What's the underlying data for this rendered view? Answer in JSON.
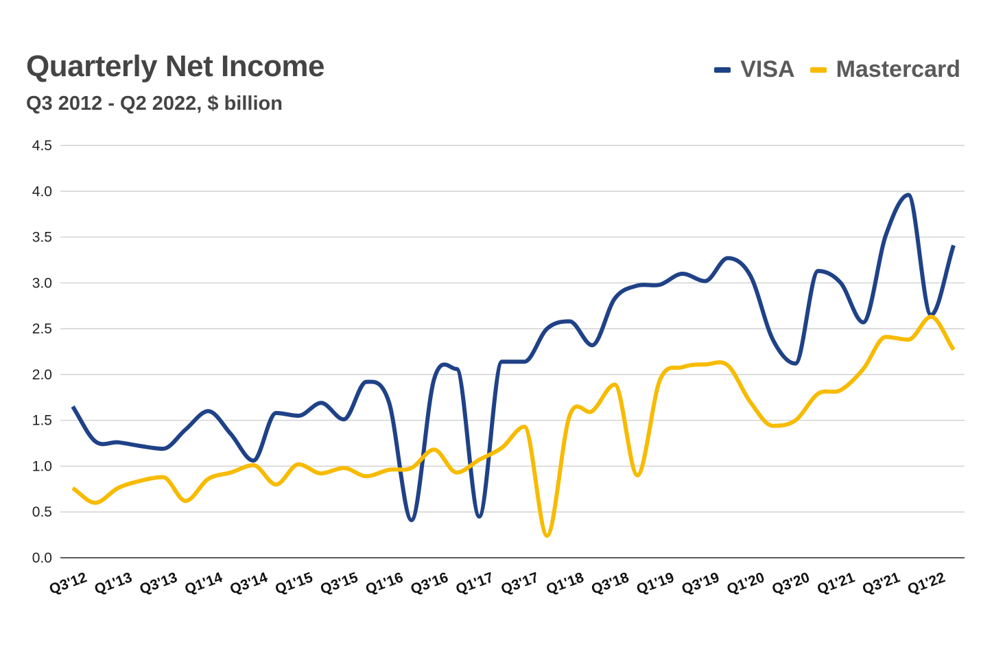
{
  "chart_data": {
    "type": "line",
    "title": "Quarterly Net Income",
    "subtitle": "Q3 2012 - Q2 2022, $ billion",
    "xlabel": "",
    "ylabel": "",
    "ylim": [
      0,
      4.5
    ],
    "yticks": [
      "0.0",
      "0.5",
      "1.0",
      "1.5",
      "2.0",
      "2.5",
      "3.0",
      "3.5",
      "4.0",
      "4.5"
    ],
    "ytick_values": [
      0,
      0.5,
      1,
      1.5,
      2,
      2.5,
      3,
      3.5,
      4,
      4.5
    ],
    "categories": [
      "Q3'12",
      "Q4'12",
      "Q1'13",
      "Q2'13",
      "Q3'13",
      "Q4'13",
      "Q1'14",
      "Q2'14",
      "Q3'14",
      "Q4'14",
      "Q1'15",
      "Q2'15",
      "Q3'15",
      "Q4'15",
      "Q1'16",
      "Q2'16",
      "Q3'16",
      "Q4'16",
      "Q1'17",
      "Q2'17",
      "Q3'17",
      "Q4'17",
      "Q1'18",
      "Q2'18",
      "Q3'18",
      "Q4'18",
      "Q1'19",
      "Q2'19",
      "Q3'19",
      "Q4'19",
      "Q1'20",
      "Q2'20",
      "Q3'20",
      "Q4'20",
      "Q1'21",
      "Q2'21",
      "Q3'21",
      "Q4'21",
      "Q1'22",
      "Q2'22"
    ],
    "x_tick_labels": [
      "Q3'12",
      "Q1'13",
      "Q3'13",
      "Q1'14",
      "Q3'14",
      "Q1'15",
      "Q3'15",
      "Q1'16",
      "Q3'16",
      "Q1'17",
      "Q3'17",
      "Q1'18",
      "Q3'18",
      "Q1'19",
      "Q3'19",
      "Q1'20",
      "Q3'20",
      "Q1'21",
      "Q3'21",
      "Q1'22"
    ],
    "grid": true,
    "legend_position": "top-right",
    "series": [
      {
        "name": "VISA",
        "color": "#1f4287",
        "values": [
          1.65,
          1.27,
          1.26,
          1.22,
          1.19,
          1.4,
          1.6,
          1.35,
          1.06,
          1.58,
          1.55,
          1.69,
          1.51,
          1.92,
          1.7,
          0.41,
          1.95,
          2.06,
          0.45,
          2.14,
          2.14,
          2.5,
          2.58,
          2.32,
          2.83,
          2.97,
          2.98,
          3.1,
          3.02,
          3.27,
          3.08,
          2.38,
          2.12,
          3.13,
          3.0,
          2.57,
          3.52,
          3.96,
          2.65,
          3.41
        ]
      },
      {
        "name": "Mastercard",
        "color": "#f7bb00",
        "values": [
          0.76,
          0.6,
          0.76,
          0.84,
          0.88,
          0.62,
          0.86,
          0.93,
          1.01,
          0.8,
          1.02,
          0.92,
          0.98,
          0.89,
          0.96,
          0.98,
          1.18,
          0.93,
          1.07,
          1.2,
          1.43,
          0.24,
          1.55,
          1.6,
          1.89,
          0.9,
          1.94,
          2.08,
          2.11,
          2.1,
          1.7,
          1.44,
          1.5,
          1.79,
          1.83,
          2.06,
          2.41,
          2.38,
          2.63,
          2.27
        ]
      }
    ]
  }
}
